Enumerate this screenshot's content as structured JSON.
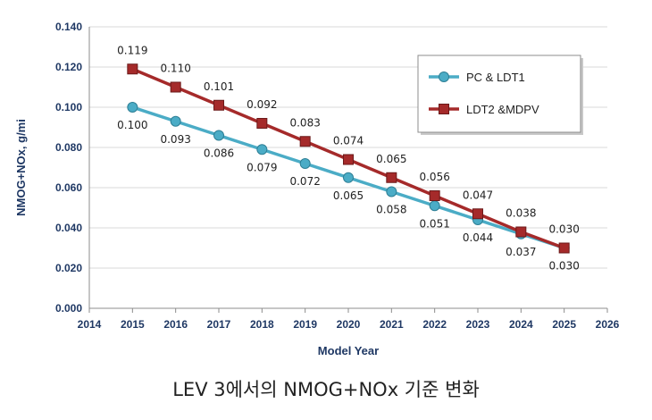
{
  "chart_data": {
    "type": "line",
    "xlabel": "Model Year",
    "ylabel": "NMOG+NOx, g/mi",
    "xlim": [
      2014,
      2026
    ],
    "ylim": [
      0,
      0.14
    ],
    "x_ticks": [
      "2014",
      "2015",
      "2016",
      "2017",
      "2018",
      "2019",
      "2020",
      "2021",
      "2022",
      "2023",
      "2024",
      "2025",
      "2026"
    ],
    "y_ticks": [
      "0.000",
      "0.020",
      "0.040",
      "0.060",
      "0.080",
      "0.100",
      "0.120",
      "0.140"
    ],
    "grid": true,
    "legend_position": "top-right",
    "x": [
      2015,
      2016,
      2017,
      2018,
      2019,
      2020,
      2021,
      2022,
      2023,
      2024,
      2025
    ],
    "series": [
      {
        "name": "PC & LDT1",
        "color": "#4bacc6",
        "marker": "circle",
        "values": [
          0.1,
          0.093,
          0.086,
          0.079,
          0.072,
          0.065,
          0.058,
          0.051,
          0.044,
          0.037,
          0.03
        ],
        "labels": [
          "0.100",
          "0.093",
          "0.086",
          "0.079",
          "0.072",
          "0.065",
          "0.058",
          "0.051",
          "0.044",
          "0.037",
          "0.030"
        ]
      },
      {
        "name": "LDT2 &MDPV",
        "color": "#a52a2a",
        "marker": "square",
        "values": [
          0.119,
          0.11,
          0.101,
          0.092,
          0.083,
          0.074,
          0.065,
          0.056,
          0.047,
          0.038,
          0.03
        ],
        "labels": [
          "0.119",
          "0.110",
          "0.101",
          "0.092",
          "0.083",
          "0.074",
          "0.065",
          "0.056",
          "0.047",
          "0.038",
          "0.030"
        ]
      }
    ]
  },
  "caption": "LEV 3에서의 NMOG+NOx 기준 변화"
}
